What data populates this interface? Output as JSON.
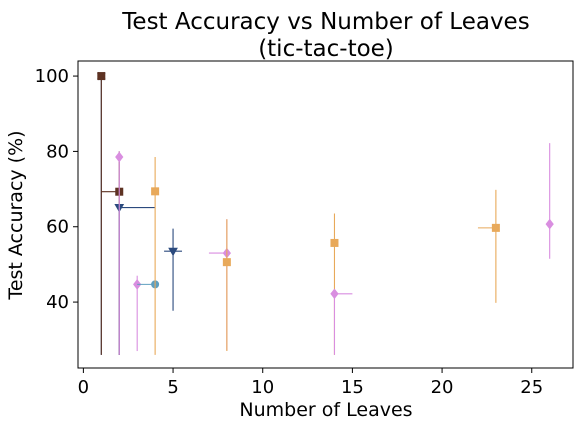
{
  "chart_data": {
    "type": "scatter",
    "title": "Test Accuracy vs Number of Leaves",
    "subtitle": "(tic-tac-toe)",
    "xlabel": "Number of Leaves",
    "ylabel": "Test Accuracy (%)",
    "xlim": [
      -0.3,
      27.3
    ],
    "ylim": [
      22.5,
      104
    ],
    "xticks": [
      0,
      5,
      10,
      15,
      20,
      25
    ],
    "yticks": [
      40,
      60,
      80,
      100
    ],
    "grid": false,
    "legend": "none",
    "points": [
      {
        "x": 1,
        "y": 100,
        "x_err": [
          1,
          1
        ],
        "y_err": [
          26,
          100
        ],
        "marker": "x",
        "color": "#2b4a7e"
      },
      {
        "x": 1,
        "y": 100,
        "x_err": [
          1,
          1
        ],
        "y_err": [
          26,
          100
        ],
        "marker": "square",
        "color": "#5e3323"
      },
      {
        "x": 2,
        "y": 69.3,
        "x_err": [
          1,
          2
        ],
        "y_err": [
          26,
          80
        ],
        "marker": "square",
        "color": "#5e3323"
      },
      {
        "x": 2,
        "y": 65.1,
        "x_err": [
          2,
          4
        ],
        "y_err": [
          26,
          65.1
        ],
        "marker": "triangle-down",
        "color": "#2b4a7e"
      },
      {
        "x": 2,
        "y": 78.5,
        "x_err": [
          2,
          2
        ],
        "y_err": [
          26,
          80
        ],
        "marker": "diamond",
        "color": "#d98ee0"
      },
      {
        "x": 3,
        "y": 44.7,
        "x_err": [
          3,
          3
        ],
        "y_err": [
          27,
          47
        ],
        "marker": "diamond",
        "color": "#d98ee0"
      },
      {
        "x": 4,
        "y": 44.7,
        "x_err": [
          3,
          4
        ],
        "y_err": [
          44.7,
          44.7
        ],
        "marker": "circle",
        "color": "#5f9fbf"
      },
      {
        "x": 4,
        "y": 69.4,
        "x_err": [
          4,
          4
        ],
        "y_err": [
          26,
          78.5
        ],
        "marker": "square",
        "color": "#e8a95a"
      },
      {
        "x": 5,
        "y": 53.5,
        "x_err": [
          4.5,
          5.5
        ],
        "y_err": [
          37.7,
          59.5
        ],
        "marker": "triangle-down",
        "color": "#2b4a7e"
      },
      {
        "x": 8,
        "y": 53.0,
        "x_err": [
          7,
          8
        ],
        "y_err": [
          27.2,
          62
        ],
        "marker": "diamond",
        "color": "#d98ee0"
      },
      {
        "x": 8,
        "y": 50.6,
        "x_err": [
          8,
          8
        ],
        "y_err": [
          27,
          62
        ],
        "marker": "square",
        "color": "#e8a95a"
      },
      {
        "x": 14,
        "y": 55.7,
        "x_err": [
          14,
          14
        ],
        "y_err": [
          26,
          63.5
        ],
        "marker": "square",
        "color": "#e8a95a"
      },
      {
        "x": 14,
        "y": 42.2,
        "x_err": [
          14,
          15
        ],
        "y_err": [
          26,
          42.2
        ],
        "marker": "diamond",
        "color": "#d98ee0"
      },
      {
        "x": 23,
        "y": 59.7,
        "x_err": [
          22,
          23
        ],
        "y_err": [
          39.8,
          69.8
        ],
        "marker": "square",
        "color": "#e8a95a"
      },
      {
        "x": 26,
        "y": 60.7,
        "x_err": [
          26,
          26
        ],
        "y_err": [
          51.5,
          82.2
        ],
        "marker": "diamond",
        "color": "#d98ee0"
      }
    ]
  }
}
